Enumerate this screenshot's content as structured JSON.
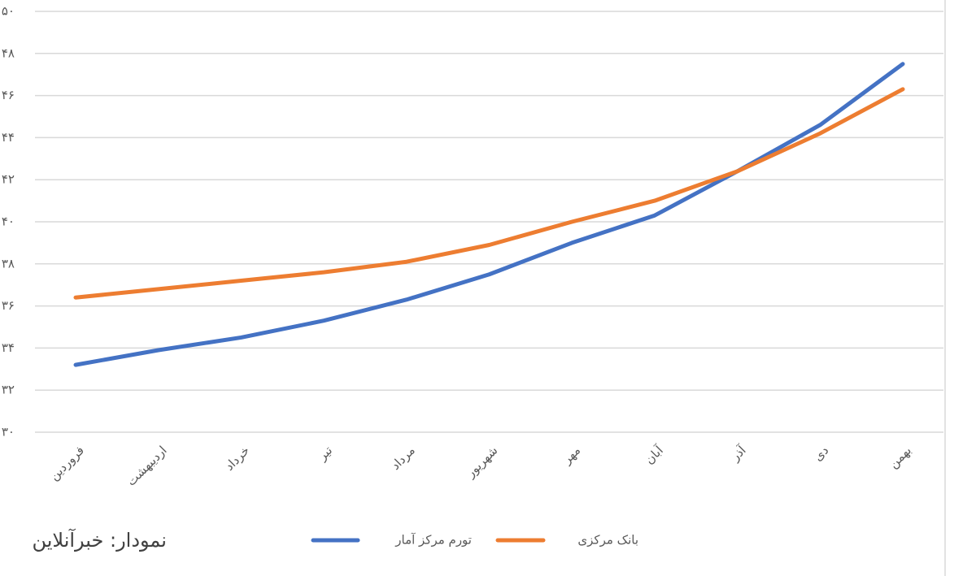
{
  "chart_data": {
    "type": "line",
    "categories": [
      "فروردین",
      "اردیبهشت",
      "خرداد",
      "تیر",
      "مرداد",
      "شهریور",
      "مهر",
      "آبان",
      "آذر",
      "دی",
      "بهمن"
    ],
    "series": [
      {
        "name": "تورم مرکز آمار",
        "color": "#4472c4",
        "values": [
          33.2,
          33.9,
          34.5,
          35.3,
          36.3,
          37.5,
          39.0,
          40.3,
          42.4,
          44.6,
          47.5
        ]
      },
      {
        "name": "بانک مرکزی",
        "color": "#ed7d31",
        "values": [
          36.4,
          36.8,
          37.2,
          37.6,
          38.1,
          38.9,
          40.0,
          41.0,
          42.4,
          44.2,
          46.3
        ]
      }
    ],
    "ylim": [
      30,
      50
    ],
    "yticks": [
      {
        "value": 30,
        "label": "۳۰"
      },
      {
        "value": 32,
        "label": "۳۲"
      },
      {
        "value": 34,
        "label": "۳۴"
      },
      {
        "value": 36,
        "label": "۳۶"
      },
      {
        "value": 38,
        "label": "۳۸"
      },
      {
        "value": 40,
        "label": "۴۰"
      },
      {
        "value": 42,
        "label": "۴۲"
      },
      {
        "value": 44,
        "label": "۴۴"
      },
      {
        "value": 46,
        "label": "۴۶"
      },
      {
        "value": 48,
        "label": "۴۸"
      },
      {
        "value": 50,
        "label": "۵۰"
      }
    ],
    "grid": true,
    "legend": "bottom",
    "source": "نمودار: خبرآنلاین"
  }
}
